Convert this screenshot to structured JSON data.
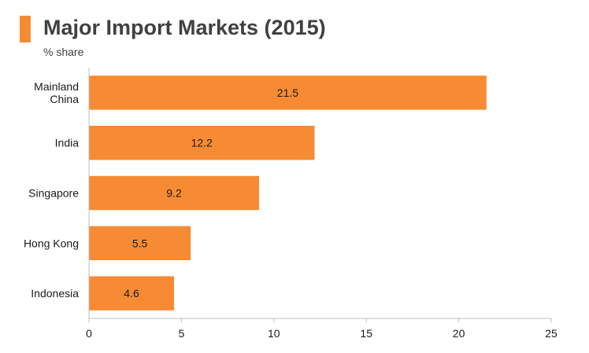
{
  "colors": {
    "bar": "#F68B33",
    "title_marker": "#F68B33",
    "axis": "#BFBFBF",
    "text": "#404040"
  },
  "chart_data": {
    "type": "bar",
    "orientation": "horizontal",
    "title": "Major Import Markets (2015)",
    "subtitle": "% share",
    "categories": [
      [
        "Mainland",
        "China"
      ],
      [
        "India"
      ],
      [
        "Singapore"
      ],
      [
        "Hong Kong"
      ],
      [
        "Indonesia"
      ]
    ],
    "values": [
      21.5,
      12.2,
      9.2,
      5.5,
      4.6
    ],
    "value_labels": [
      "21.5",
      "12.2",
      "9.2",
      "5.5",
      "4.6"
    ],
    "xlim": [
      0,
      25
    ],
    "xticks": [
      0,
      5,
      10,
      15,
      20,
      25
    ],
    "grid": false,
    "legend": "none"
  }
}
